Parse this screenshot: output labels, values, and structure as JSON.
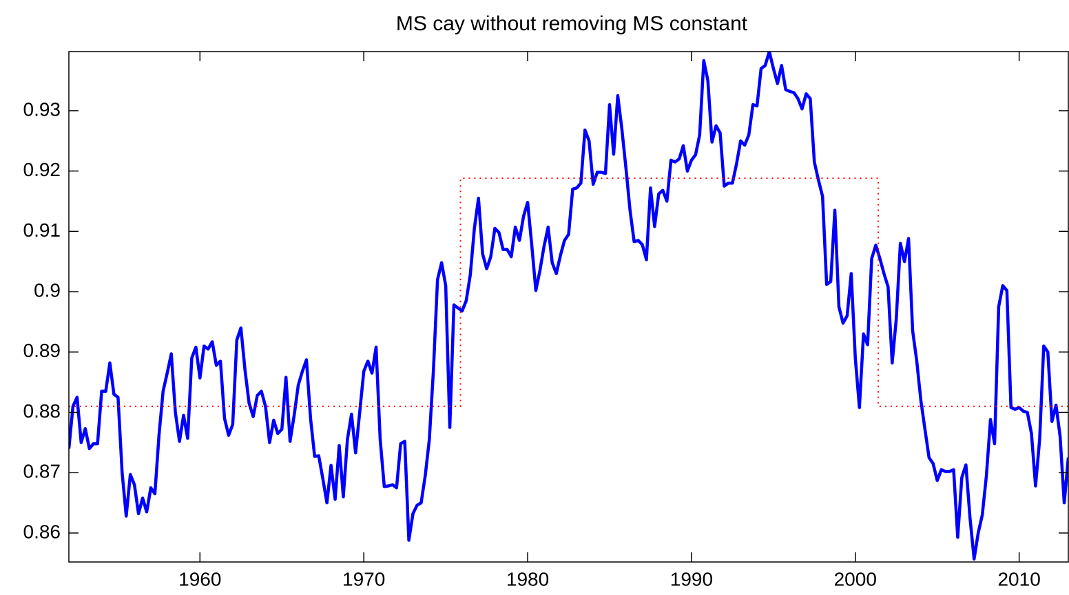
{
  "chart_data": {
    "type": "line",
    "title": "MS cay without removing MS constant",
    "xlim": [
      1952,
      2013
    ],
    "ylim": [
      0.8552,
      0.9398
    ],
    "xticks": [
      1960,
      1970,
      1980,
      1990,
      2000,
      2010
    ],
    "yticks": [
      0.86,
      0.87,
      0.88,
      0.89,
      0.9,
      0.91,
      0.92,
      0.93
    ],
    "grid": false,
    "series": [
      {
        "color": "#0000ff",
        "style": "solid",
        "x": [
          1952,
          1952.25,
          1952.5,
          1952.75,
          1953,
          1953.25,
          1953.5,
          1953.75,
          1954,
          1954.25,
          1954.5,
          1954.75,
          1955,
          1955.25,
          1955.5,
          1955.75,
          1956,
          1956.25,
          1956.5,
          1956.75,
          1957,
          1957.25,
          1957.5,
          1957.75,
          1958,
          1958.25,
          1958.5,
          1958.75,
          1959,
          1959.25,
          1959.5,
          1959.75,
          1960,
          1960.25,
          1960.5,
          1960.75,
          1961,
          1961.25,
          1961.5,
          1961.75,
          1962,
          1962.25,
          1962.5,
          1962.75,
          1963,
          1963.25,
          1963.5,
          1963.75,
          1964,
          1964.25,
          1964.5,
          1964.75,
          1965,
          1965.25,
          1965.5,
          1965.75,
          1966,
          1966.25,
          1966.5,
          1966.75,
          1967,
          1967.25,
          1967.5,
          1967.75,
          1968,
          1968.25,
          1968.5,
          1968.75,
          1969,
          1969.25,
          1969.5,
          1969.75,
          1970,
          1970.25,
          1970.5,
          1970.75,
          1971,
          1971.25,
          1971.5,
          1971.75,
          1972,
          1972.25,
          1972.5,
          1972.75,
          1973,
          1973.25,
          1973.5,
          1973.75,
          1974,
          1974.25,
          1974.5,
          1974.75,
          1975,
          1975.25,
          1975.5,
          1975.75,
          1976,
          1976.25,
          1976.5,
          1976.75,
          1977,
          1977.25,
          1977.5,
          1977.75,
          1978,
          1978.25,
          1978.5,
          1978.75,
          1979,
          1979.25,
          1979.5,
          1979.75,
          1980,
          1980.25,
          1980.5,
          1980.75,
          1981,
          1981.25,
          1981.5,
          1981.75,
          1982,
          1982.25,
          1982.5,
          1982.75,
          1983,
          1983.25,
          1983.5,
          1983.75,
          1984,
          1984.25,
          1984.5,
          1984.75,
          1985,
          1985.25,
          1985.5,
          1985.75,
          1986,
          1986.25,
          1986.5,
          1986.75,
          1987,
          1987.25,
          1987.5,
          1987.75,
          1988,
          1988.25,
          1988.5,
          1988.75,
          1989,
          1989.25,
          1989.5,
          1989.75,
          1990,
          1990.25,
          1990.5,
          1990.75,
          1991,
          1991.25,
          1991.5,
          1991.75,
          1992,
          1992.25,
          1992.5,
          1992.75,
          1993,
          1993.25,
          1993.5,
          1993.75,
          1994,
          1994.25,
          1994.5,
          1994.75,
          1995,
          1995.25,
          1995.5,
          1995.75,
          1996,
          1996.25,
          1996.5,
          1996.75,
          1997,
          1997.25,
          1997.5,
          1997.75,
          1998,
          1998.25,
          1998.5,
          1998.75,
          1999,
          1999.25,
          1999.5,
          1999.75,
          2000,
          2000.25,
          2000.5,
          2000.75,
          2001,
          2001.25,
          2001.5,
          2001.75,
          2002,
          2002.25,
          2002.5,
          2002.75,
          2003,
          2003.25,
          2003.5,
          2003.75,
          2004,
          2004.25,
          2004.5,
          2004.75,
          2005,
          2005.25,
          2005.5,
          2005.75,
          2006,
          2006.25,
          2006.5,
          2006.75,
          2007,
          2007.25,
          2007.5,
          2007.75,
          2008,
          2008.25,
          2008.5,
          2008.75,
          2009,
          2009.25,
          2009.5,
          2009.75,
          2010,
          2010.25,
          2010.5,
          2010.75,
          2011,
          2011.25,
          2011.5,
          2011.75,
          2012,
          2012.25,
          2012.5,
          2012.75,
          2013
        ],
        "values": [
          0.874,
          0.881,
          0.8825,
          0.875,
          0.8773,
          0.874,
          0.8748,
          0.8748,
          0.8835,
          0.8835,
          0.8882,
          0.883,
          0.8825,
          0.87,
          0.8628,
          0.8697,
          0.868,
          0.8632,
          0.8658,
          0.8635,
          0.8675,
          0.8665,
          0.8762,
          0.8835,
          0.8865,
          0.8897,
          0.88,
          0.8752,
          0.8795,
          0.8757,
          0.889,
          0.8908,
          0.8857,
          0.891,
          0.8905,
          0.8917,
          0.8878,
          0.8885,
          0.879,
          0.8762,
          0.878,
          0.892,
          0.894,
          0.887,
          0.8815,
          0.8793,
          0.8828,
          0.8835,
          0.881,
          0.875,
          0.8787,
          0.8765,
          0.8772,
          0.8858,
          0.8752,
          0.8795,
          0.8845,
          0.8868,
          0.8887,
          0.879,
          0.8727,
          0.8728,
          0.869,
          0.865,
          0.8712,
          0.8656,
          0.8745,
          0.866,
          0.8755,
          0.8797,
          0.8733,
          0.88,
          0.8868,
          0.8885,
          0.8865,
          0.8908,
          0.8755,
          0.8677,
          0.8678,
          0.868,
          0.8675,
          0.8748,
          0.8752,
          0.8588,
          0.8632,
          0.8646,
          0.865,
          0.8695,
          0.8755,
          0.887,
          0.902,
          0.9048,
          0.901,
          0.8775,
          0.8978,
          0.8973,
          0.8968,
          0.8985,
          0.9028,
          0.9105,
          0.9155,
          0.9063,
          0.9038,
          0.9058,
          0.9105,
          0.9098,
          0.907,
          0.907,
          0.9058,
          0.9107,
          0.9085,
          0.9125,
          0.9148,
          0.9078,
          0.9002,
          0.9035,
          0.9075,
          0.9107,
          0.9048,
          0.903,
          0.906,
          0.9085,
          0.9095,
          0.917,
          0.9172,
          0.918,
          0.9268,
          0.925,
          0.9178,
          0.9198,
          0.9198,
          0.9196,
          0.931,
          0.9228,
          0.9325,
          0.927,
          0.9205,
          0.9135,
          0.9083,
          0.9085,
          0.9078,
          0.9053,
          0.9172,
          0.9108,
          0.9162,
          0.9168,
          0.915,
          0.9218,
          0.9215,
          0.922,
          0.9242,
          0.92,
          0.9218,
          0.9227,
          0.926,
          0.9383,
          0.935,
          0.9248,
          0.9275,
          0.9263,
          0.9175,
          0.918,
          0.918,
          0.9212,
          0.925,
          0.9243,
          0.926,
          0.931,
          0.9308,
          0.937,
          0.9375,
          0.9398,
          0.937,
          0.9345,
          0.9375,
          0.9335,
          0.9332,
          0.933,
          0.932,
          0.9303,
          0.9328,
          0.932,
          0.9215,
          0.9185,
          0.9158,
          0.9012,
          0.9017,
          0.9135,
          0.8975,
          0.8948,
          0.896,
          0.903,
          0.889,
          0.8808,
          0.893,
          0.8912,
          0.9055,
          0.9077,
          0.9055,
          0.903,
          0.9008,
          0.8882,
          0.8955,
          0.908,
          0.905,
          0.9088,
          0.8935,
          0.8885,
          0.882,
          0.8772,
          0.8725,
          0.8715,
          0.8687,
          0.8705,
          0.8702,
          0.8702,
          0.8705,
          0.8593,
          0.8692,
          0.8713,
          0.8625,
          0.8557,
          0.86,
          0.863,
          0.8695,
          0.8788,
          0.8748,
          0.8975,
          0.901,
          0.9002,
          0.8808,
          0.8805,
          0.8808,
          0.8802,
          0.88,
          0.8765,
          0.8678,
          0.8755,
          0.891,
          0.89,
          0.8785,
          0.8812,
          0.876,
          0.865,
          0.8725
        ]
      },
      {
        "color": "#ff0000",
        "style": "dotted",
        "x": [
          1952,
          1975.9,
          1975.9,
          2001.4,
          2001.4,
          2013
        ],
        "values": [
          0.881,
          0.881,
          0.9188,
          0.9188,
          0.881,
          0.881
        ]
      }
    ]
  }
}
